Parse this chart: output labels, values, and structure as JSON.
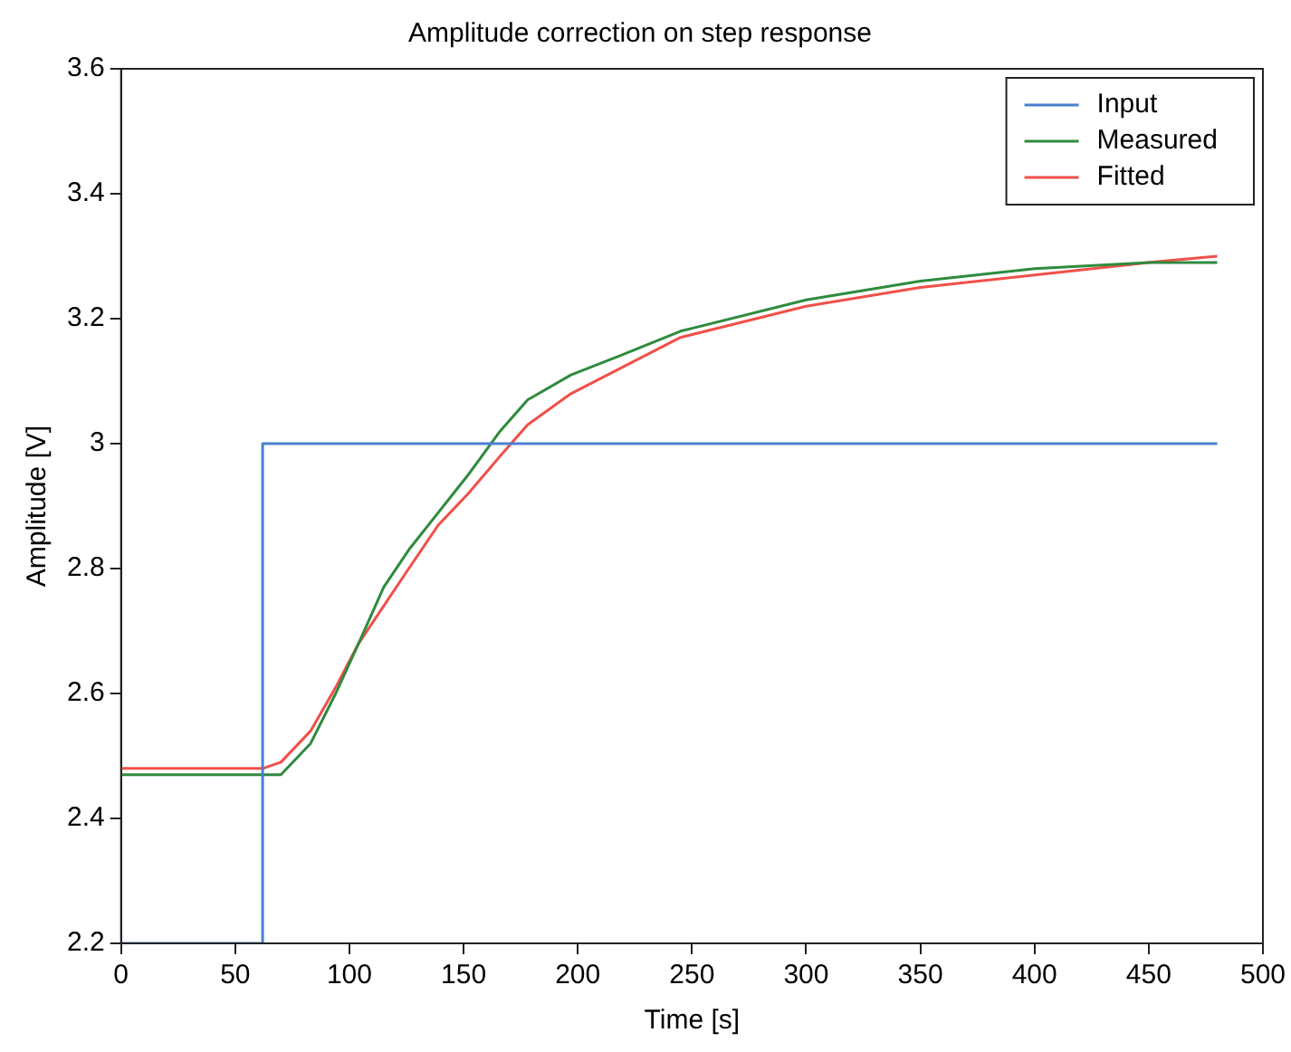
{
  "chart_data": {
    "type": "line",
    "title": "Amplitude correction on step response",
    "xlabel": "Time [s]",
    "ylabel": "Amplitude [V]",
    "xlim": [
      0,
      500
    ],
    "xticks": [
      0,
      50,
      100,
      150,
      200,
      250,
      300,
      350,
      400,
      450,
      500
    ],
    "ylim": [
      2.2,
      3.6
    ],
    "yticks": [
      2.2,
      2.4,
      2.6,
      2.8,
      3,
      3.2,
      3.4,
      3.6
    ],
    "grid": false,
    "legend": "top right",
    "marker": "none",
    "line_style": "solid",
    "series": [
      {
        "name": "Input",
        "color": "#4a7fd0",
        "x": [
          0,
          62,
          62,
          480
        ],
        "values": [
          2.2,
          2.2,
          3.0,
          3.0
        ]
      },
      {
        "name": "Measured",
        "color": "#2e8b3e",
        "x": [
          0,
          30,
          62,
          70,
          83,
          94,
          104,
          115,
          126,
          139,
          152,
          166,
          178,
          197,
          218,
          245,
          300,
          350,
          400,
          450,
          480
        ],
        "values": [
          2.47,
          2.47,
          2.47,
          2.47,
          2.52,
          2.6,
          2.68,
          2.77,
          2.83,
          2.89,
          2.95,
          3.02,
          3.07,
          3.11,
          3.14,
          3.18,
          3.23,
          3.26,
          3.28,
          3.29,
          3.29
        ]
      },
      {
        "name": "Fitted",
        "color": "#f0504a",
        "x": [
          0,
          62,
          70,
          83,
          94,
          104,
          115,
          126,
          139,
          152,
          166,
          178,
          197,
          245,
          300,
          350,
          400,
          450,
          480
        ],
        "values": [
          2.48,
          2.48,
          2.49,
          2.54,
          2.61,
          2.68,
          2.74,
          2.8,
          2.87,
          2.92,
          2.98,
          3.03,
          3.08,
          3.17,
          3.22,
          3.25,
          3.27,
          3.29,
          3.3
        ]
      }
    ]
  }
}
